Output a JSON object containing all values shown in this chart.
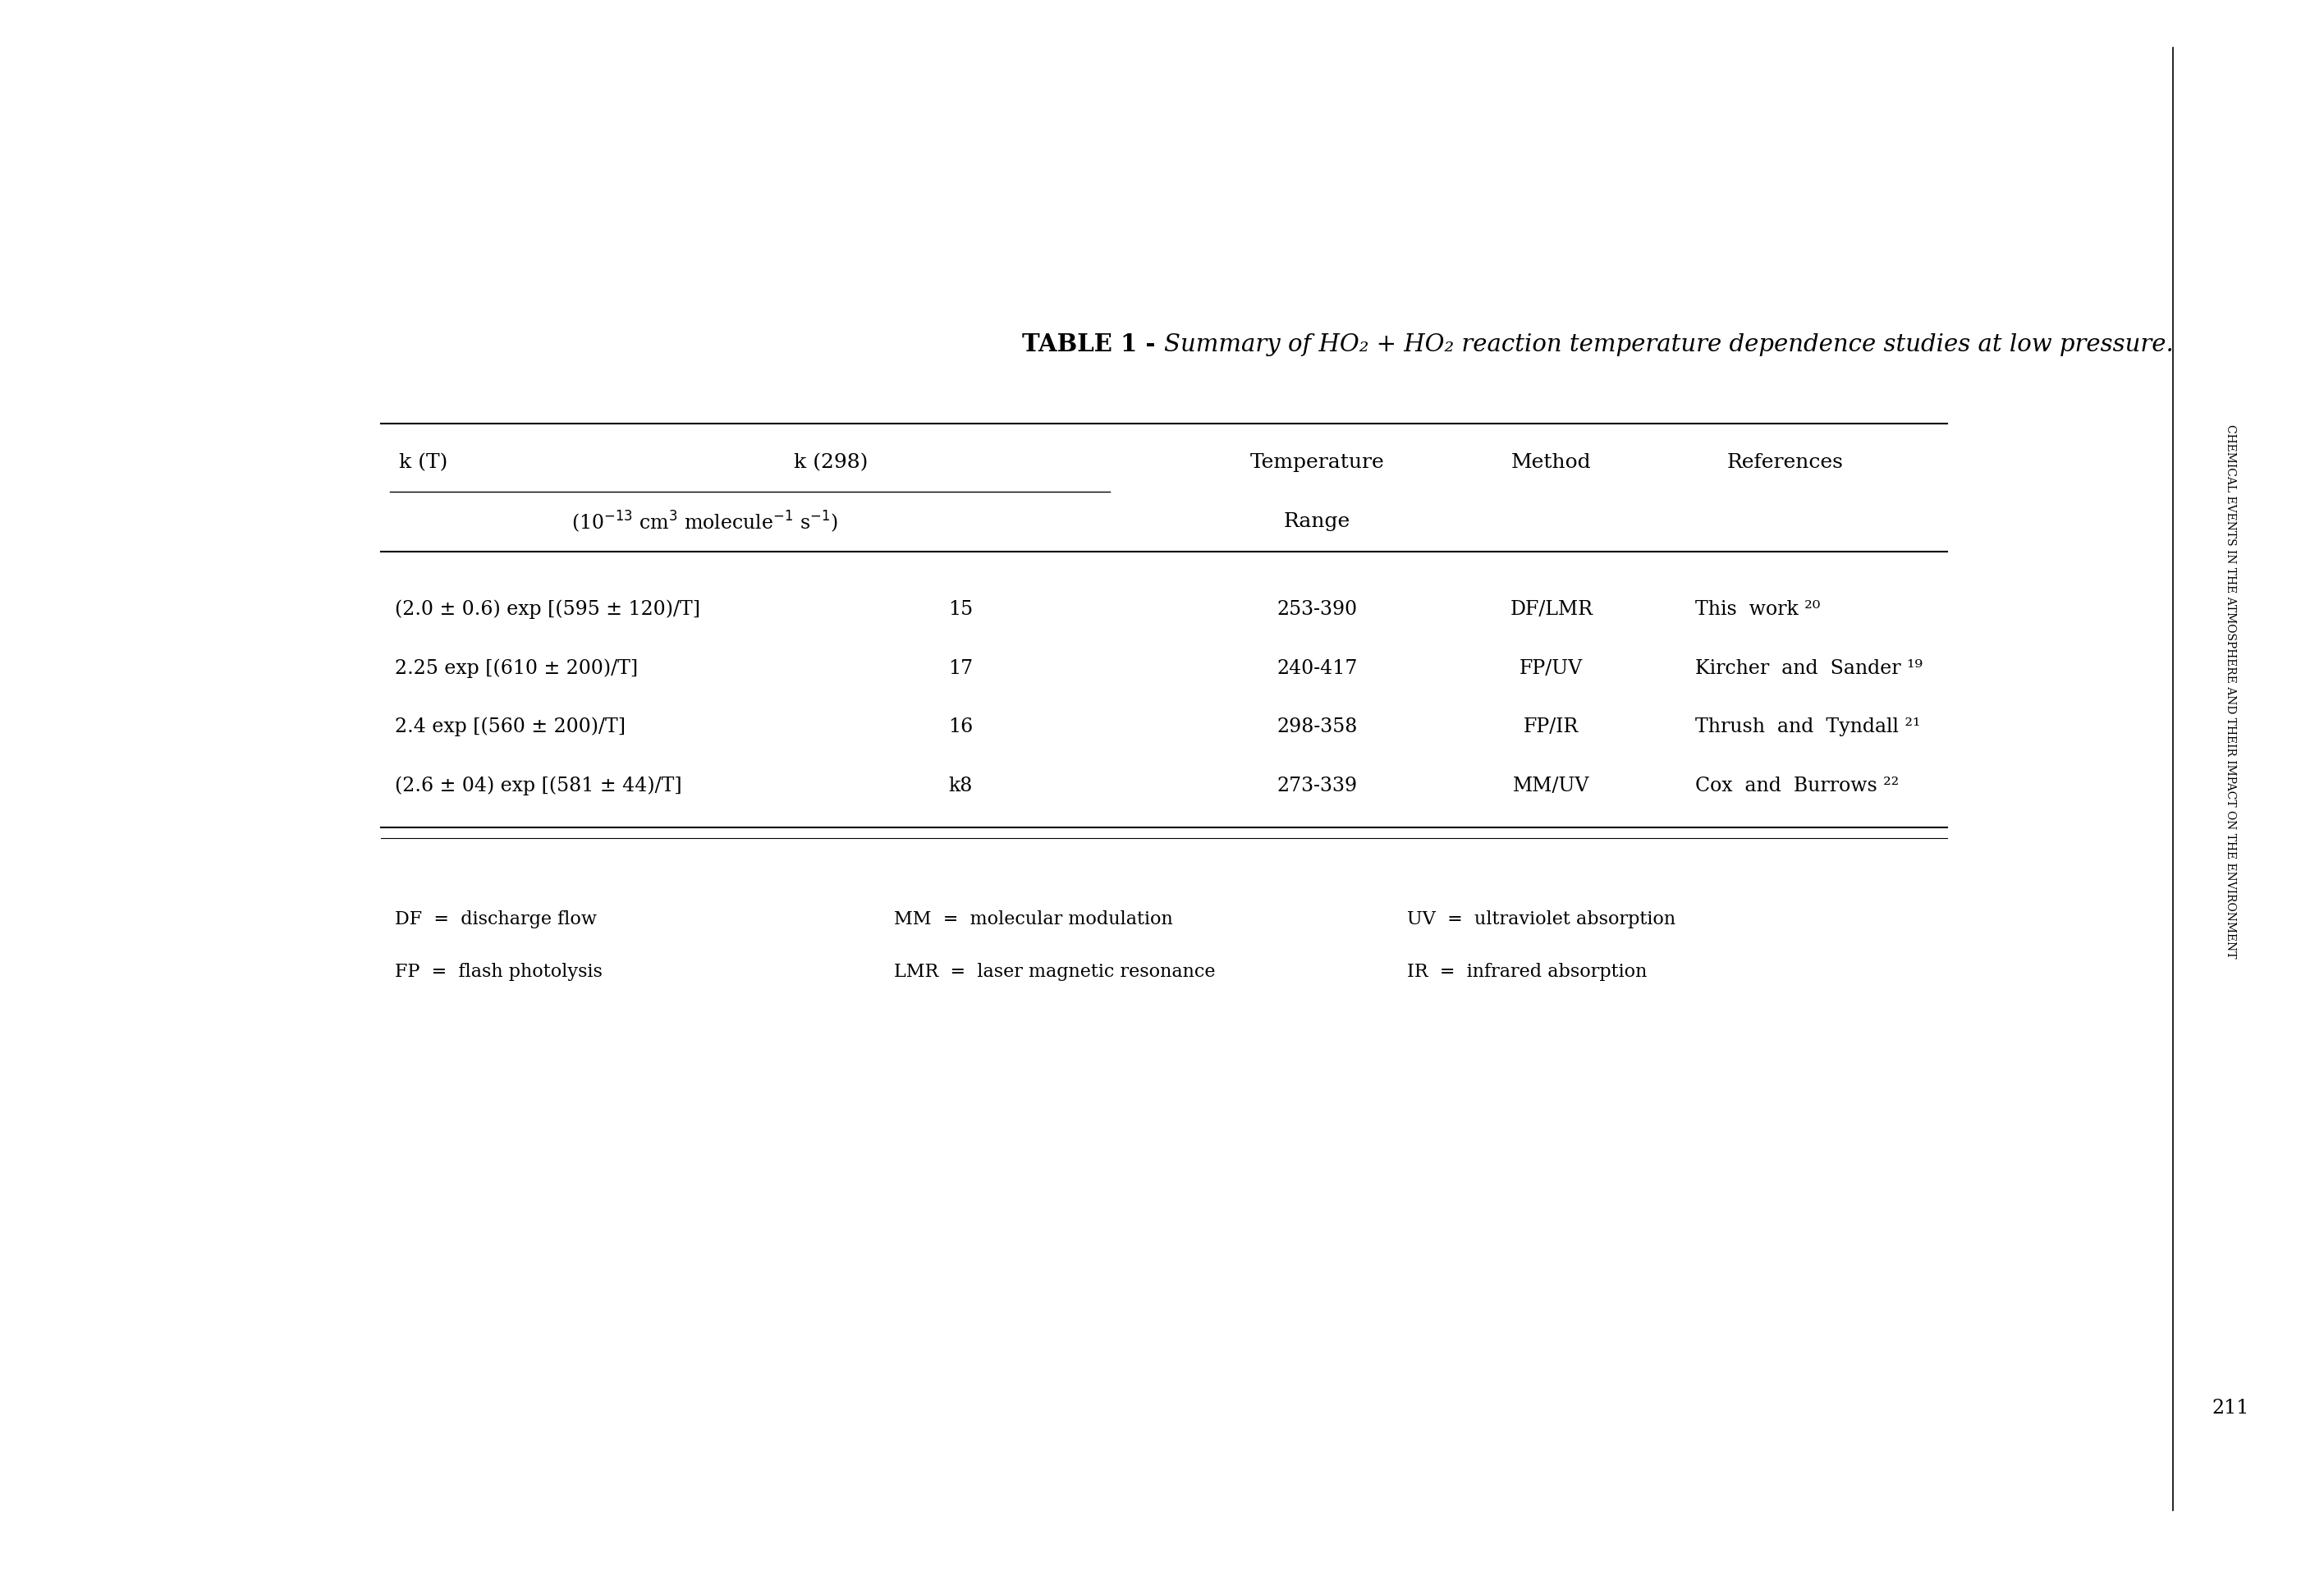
{
  "title_normal": "TABLE 1 - ",
  "title_italic": "Summary of HO₂ + HO₂ reaction temperature dependence studies at low pressure.",
  "rows": [
    [
      "(2.0 ± 0.6) exp [(595 ± 120)/T]",
      "15",
      "253-390",
      "DF/LMR",
      "This  work ²⁰"
    ],
    [
      "2.25 exp [(610 ± 200)/T]",
      "17",
      "240-417",
      "FP/UV",
      "Kircher  and  Sander ¹⁹"
    ],
    [
      "2.4 exp [(560 ± 200)/T]",
      "16",
      "298-358",
      "FP/IR",
      "Thrush  and  Tyndall ²¹"
    ],
    [
      "(2.6 ± 04) exp [(581 ± 44)/T]",
      "k8",
      "273-339",
      "MM/UV",
      "Cox  and  Burrows ²²"
    ]
  ],
  "footnotes_col1": [
    "DF  =  discharge flow",
    "FP  =  flash photolysis"
  ],
  "footnotes_col2": [
    "MM  =  molecular modulation",
    "LMR  =  laser magnetic resonance"
  ],
  "footnotes_col3": [
    "UV  =  ultraviolet absorption",
    "IR  =  infrared absorption"
  ],
  "bg_color": "#ffffff",
  "text_color": "#000000",
  "side_text": "CHEMICAL EVENTS IN THE ATMOSPHERE AND THEIR IMPACT ON THE ENVIRONMENT",
  "page_num": "211"
}
